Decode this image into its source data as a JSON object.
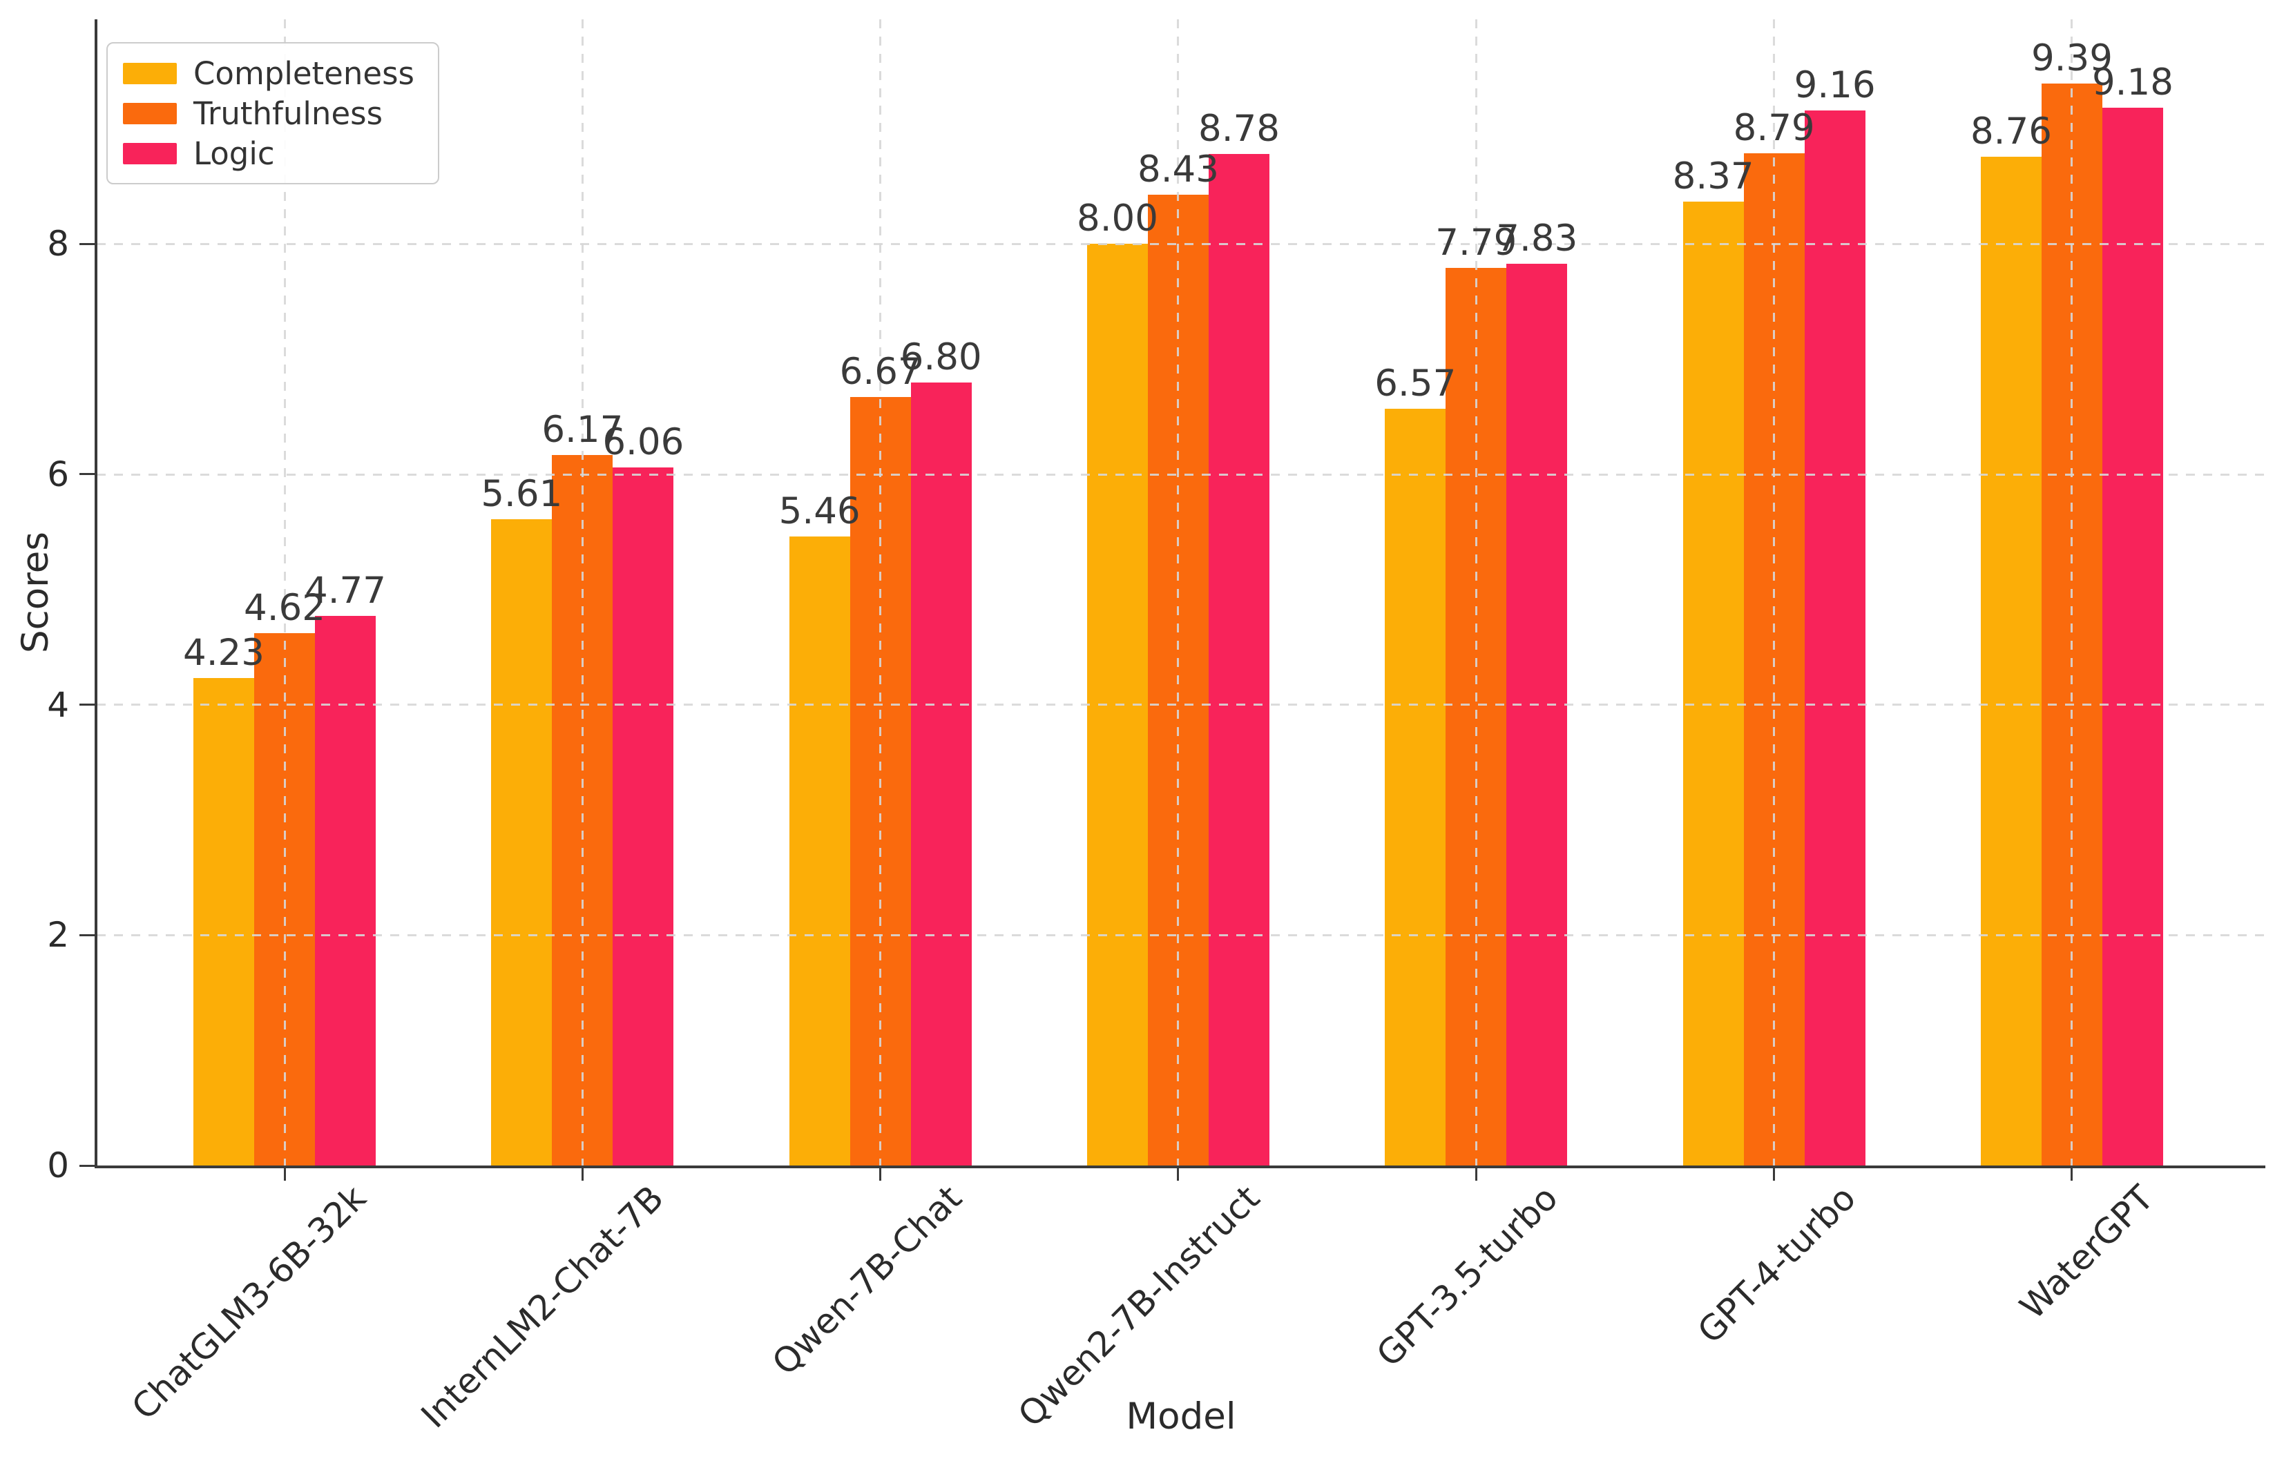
{
  "figure": {
    "background_color": "#ffffff",
    "text_color": "#2b2b2b",
    "spine_color": "#3a3a3a",
    "grid_color": "#d7d7d7"
  },
  "chart_data": {
    "type": "bar",
    "title": "",
    "xlabel": "Model",
    "ylabel": "Scores",
    "categories": [
      "ChatGLM3-6B-32k",
      "InternLM2-Chat-7B",
      "Qwen-7B-Chat",
      "Qwen2-7B-Instruct",
      "GPT-3.5-turbo",
      "GPT-4-turbo",
      "WaterGPT"
    ],
    "series": [
      {
        "name": "Completeness",
        "color": "#FCAE07",
        "values": [
          4.23,
          5.61,
          5.46,
          8.0,
          6.57,
          8.37,
          8.76
        ],
        "labels": [
          "4.23",
          "5.61",
          "5.46",
          "8.00",
          "6.57",
          "8.37",
          "8.76"
        ]
      },
      {
        "name": "Truthfulness",
        "color": "#FA6A0D",
        "values": [
          4.62,
          6.17,
          6.67,
          8.43,
          7.79,
          8.79,
          9.39
        ],
        "labels": [
          "4.62",
          "6.17",
          "6.67",
          "8.43",
          "7.79",
          "8.79",
          "9.39"
        ]
      },
      {
        "name": "Logic",
        "color": "#F8235A",
        "values": [
          4.77,
          6.06,
          6.8,
          8.78,
          7.83,
          9.16,
          9.18
        ],
        "labels": [
          "4.77",
          "6.06",
          "6.80",
          "8.78",
          "7.83",
          "9.16",
          "9.18"
        ]
      }
    ],
    "yticks": [
      "0",
      "2",
      "4",
      "6",
      "8"
    ],
    "ytick_values": [
      0,
      2,
      4,
      6,
      8
    ],
    "ylim": [
      0,
      9.95
    ],
    "grid": {
      "style": "dashed",
      "axes": "both",
      "drawn_over_bars": true
    },
    "legend": {
      "position": "upper-left",
      "entries": [
        "Completeness",
        "Truthfulness",
        "Logic"
      ]
    },
    "value_labels_shown": true
  }
}
